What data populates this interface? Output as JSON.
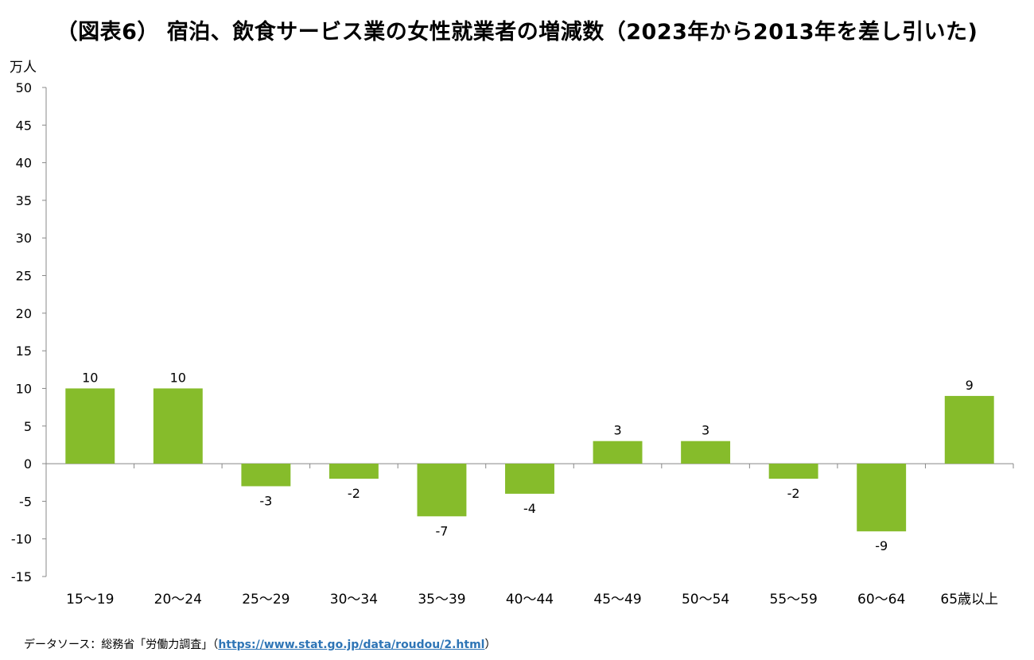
{
  "chart_data": {
    "type": "bar",
    "title": "（図表6） 宿泊、飲食サービス業の女性就業者の増減数（2023年から2013年を差し引いた)",
    "ylabel": "万人",
    "categories": [
      "15〜19",
      "20〜24",
      "25〜29",
      "30〜34",
      "35〜39",
      "40〜44",
      "45〜49",
      "50〜54",
      "55〜59",
      "60〜64",
      "65歳以上"
    ],
    "values": [
      10,
      10,
      -3,
      -2,
      -7,
      -4,
      3,
      3,
      -2,
      -9,
      9
    ],
    "ylim": [
      -15,
      50
    ],
    "yticks": [
      50,
      45,
      40,
      35,
      30,
      25,
      20,
      15,
      10,
      5,
      0,
      -5,
      -10,
      -15
    ],
    "bar_color": "#86bc2b",
    "grid": false,
    "legend": "none"
  },
  "source": {
    "prefix": "データソース：総務省「労働力調査」（",
    "link": "https://www.stat.go.jp/data/roudou/2.html",
    "suffix": "）"
  }
}
